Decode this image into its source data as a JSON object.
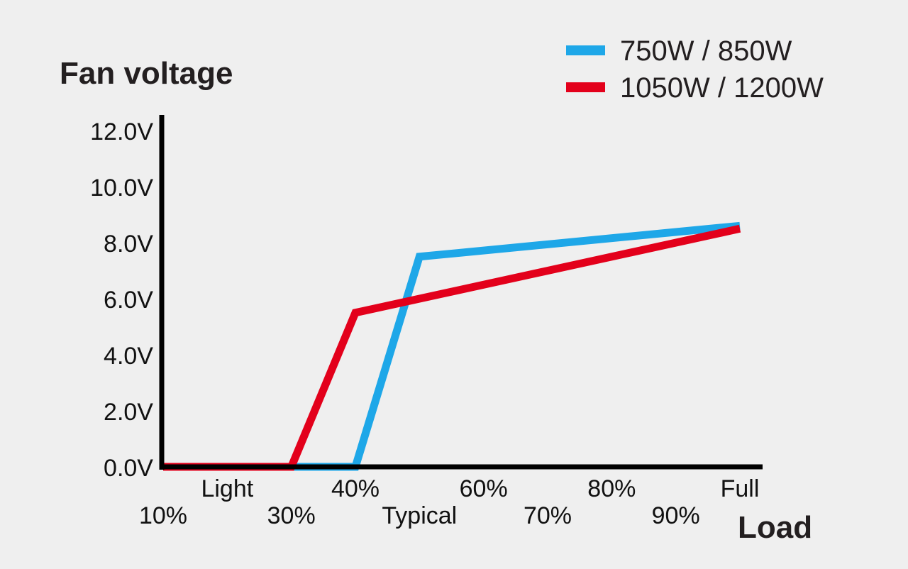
{
  "chart_data": {
    "type": "line",
    "ylabel": "Fan voltage",
    "xlabel": "Load",
    "y_ticks": [
      "0.0V",
      "2.0V",
      "4.0V",
      "6.0V",
      "8.0V",
      "10.0V",
      "12.0V"
    ],
    "ylim": [
      0,
      12
    ],
    "x_ticks": [
      "10%",
      "Light",
      "30%",
      "40%",
      "Typical",
      "60%",
      "70%",
      "80%",
      "90%",
      "Full"
    ],
    "xlim": [
      10,
      100
    ],
    "x_tick_values": [
      10,
      20,
      30,
      40,
      50,
      60,
      70,
      80,
      90,
      100
    ],
    "grid": false,
    "legend_position": "top-right",
    "series": [
      {
        "name": "750W / 850W",
        "color": "#1ea7e8",
        "points": [
          [
            10,
            0
          ],
          [
            40,
            0
          ],
          [
            50,
            7.5
          ],
          [
            100,
            8.6
          ]
        ]
      },
      {
        "name": "1050W / 1200W",
        "color": "#e3001b",
        "points": [
          [
            10,
            0
          ],
          [
            30,
            0
          ],
          [
            40,
            5.5
          ],
          [
            100,
            8.5
          ]
        ]
      }
    ]
  }
}
